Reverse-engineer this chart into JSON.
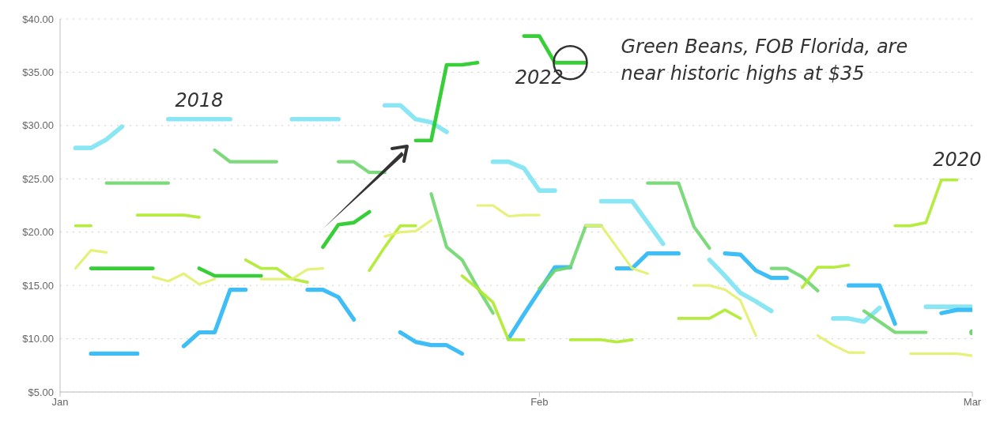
{
  "chart_data": {
    "type": "line",
    "x": [
      "--01-02",
      "--01-03",
      "--01-04",
      "--01-05",
      "--01-06",
      "--01-07",
      "--01-08",
      "--01-09",
      "--01-10",
      "--01-11",
      "--01-12",
      "--01-13",
      "--01-14",
      "--01-15",
      "--01-16",
      "--01-17",
      "--01-18",
      "--01-19",
      "--01-20",
      "--01-21",
      "--01-22",
      "--01-23",
      "--01-24",
      "--01-25",
      "--01-26",
      "--01-27",
      "--01-28",
      "--01-29",
      "--01-30",
      "--01-31",
      "--02-01",
      "--02-02",
      "--02-03",
      "--02-04",
      "--02-05",
      "--02-06",
      "--02-07",
      "--02-08",
      "--02-09",
      "--02-10",
      "--02-11",
      "--02-12",
      "--02-13",
      "--02-14",
      "--02-15",
      "--02-16",
      "--02-17",
      "--02-18",
      "--02-19",
      "--02-20",
      "--02-21",
      "--02-22",
      "--02-23",
      "--02-24",
      "--02-25",
      "--02-26",
      "--02-27",
      "--02-28",
      "--03-01"
    ],
    "series": [
      {
        "name": "2018",
        "color": "#7ee3f2",
        "values": [
          27.9,
          27.9,
          28.7,
          29.9,
          null,
          null,
          30.6,
          30.6,
          30.6,
          30.6,
          30.6,
          null,
          null,
          null,
          30.6,
          30.6,
          30.6,
          30.6,
          null,
          null,
          31.9,
          31.9,
          30.6,
          30.3,
          29.4,
          null,
          null,
          26.6,
          26.6,
          26.0,
          23.9,
          23.9,
          null,
          null,
          22.9,
          22.9,
          22.9,
          20.9,
          18.9,
          null,
          null,
          17.4,
          15.9,
          14.3,
          13.5,
          12.6,
          null,
          null,
          null,
          11.9,
          11.9,
          11.6,
          12.9,
          null,
          null,
          13.0,
          13.0,
          13.0,
          13.0
        ]
      },
      {
        "color": "#29b6f6",
        "values": [
          null,
          8.6,
          8.6,
          8.6,
          8.6,
          null,
          null,
          9.3,
          10.6,
          10.6,
          14.6,
          14.6,
          null,
          null,
          null,
          14.6,
          14.6,
          13.9,
          11.8,
          null,
          null,
          10.6,
          9.7,
          9.4,
          9.4,
          8.6,
          null,
          null,
          10.0,
          12.3,
          14.5,
          16.7,
          16.7,
          null,
          null,
          16.6,
          16.6,
          18.0,
          18.0,
          18.0,
          null,
          null,
          18.0,
          17.9,
          16.4,
          15.7,
          15.7,
          null,
          null,
          null,
          15.0,
          15.0,
          15.0,
          11.4,
          null,
          null,
          12.4,
          12.7,
          12.7
        ]
      },
      {
        "name": "2022",
        "color": "#22c922",
        "values": [
          null,
          16.6,
          16.6,
          16.6,
          16.6,
          16.6,
          null,
          null,
          16.6,
          15.9,
          15.9,
          15.9,
          15.9,
          null,
          null,
          null,
          18.6,
          20.7,
          20.9,
          21.9,
          null,
          null,
          28.6,
          28.6,
          35.7,
          35.7,
          35.9,
          null,
          null,
          38.4,
          38.4,
          35.9,
          35.9,
          35.9,
          null,
          null,
          null,
          null,
          null,
          null,
          null,
          null,
          null,
          null,
          null,
          null,
          null,
          null,
          null,
          null,
          null,
          null,
          null,
          null,
          null,
          null,
          null,
          null,
          null
        ]
      },
      {
        "color": "#6ed66e",
        "values": [
          null,
          null,
          24.6,
          24.6,
          24.6,
          24.6,
          24.6,
          null,
          null,
          27.7,
          26.6,
          26.6,
          26.6,
          26.6,
          null,
          null,
          null,
          26.6,
          26.6,
          25.6,
          25.6,
          null,
          null,
          23.6,
          18.6,
          17.4,
          14.8,
          12.4,
          null,
          null,
          14.7,
          16.4,
          16.7,
          20.6,
          20.6,
          null,
          null,
          24.6,
          24.6,
          24.6,
          20.5,
          18.5,
          null,
          null,
          null,
          16.6,
          16.6,
          15.8,
          14.5,
          null,
          null,
          12.6,
          11.6,
          10.6,
          10.6,
          10.6,
          null,
          null,
          10.6
        ]
      },
      {
        "name": "2020",
        "color": "#aeea2c",
        "values": [
          20.6,
          20.6,
          null,
          null,
          21.6,
          21.6,
          21.6,
          21.6,
          21.4,
          null,
          null,
          17.4,
          16.6,
          16.6,
          15.6,
          15.3,
          null,
          null,
          null,
          16.4,
          18.6,
          20.6,
          20.6,
          null,
          null,
          15.9,
          14.7,
          13.4,
          9.9,
          9.9,
          null,
          null,
          9.9,
          9.9,
          9.9,
          9.7,
          9.9,
          null,
          null,
          11.9,
          11.9,
          11.9,
          12.7,
          11.9,
          null,
          null,
          null,
          14.8,
          16.7,
          16.7,
          16.9,
          null,
          null,
          20.6,
          20.6,
          20.9,
          24.9,
          24.9,
          null
        ]
      },
      {
        "color": "#e2f06a",
        "values": [
          16.6,
          18.3,
          18.1,
          null,
          null,
          15.8,
          15.4,
          16.1,
          15.1,
          15.6,
          null,
          null,
          15.6,
          15.6,
          15.6,
          16.5,
          16.6,
          null,
          null,
          null,
          19.6,
          20.0,
          20.1,
          21.1,
          null,
          null,
          22.5,
          22.5,
          21.5,
          21.6,
          21.6,
          null,
          null,
          20.6,
          20.6,
          18.6,
          16.6,
          16.1,
          null,
          null,
          15.0,
          15.0,
          14.6,
          13.6,
          10.3,
          null,
          null,
          null,
          10.3,
          9.4,
          8.7,
          8.7,
          null,
          null,
          8.6,
          8.6,
          8.6,
          8.6,
          8.4
        ]
      }
    ],
    "xlim": [
      "--01-01",
      "--03-01"
    ],
    "xticks": [
      {
        "value": "--01-01",
        "label": "Jan"
      },
      {
        "value": "--02-01",
        "label": "Feb"
      },
      {
        "value": "--03-01",
        "label": "Mar"
      }
    ],
    "ylim": [
      5,
      40
    ],
    "yticks": [
      {
        "value": 5,
        "label": "$5.00"
      },
      {
        "value": 10,
        "label": "$10.00"
      },
      {
        "value": 15,
        "label": "$15.00"
      },
      {
        "value": 20,
        "label": "$20.00"
      },
      {
        "value": 25,
        "label": "$25.00"
      },
      {
        "value": 30,
        "label": "$30.00"
      },
      {
        "value": 35,
        "label": "$35.00"
      },
      {
        "value": 40,
        "label": "$40.00"
      }
    ],
    "grid": "y",
    "marker": "none",
    "line_style": "solid",
    "annotations": [
      {
        "text": "Green Beans, FOB Florida, are near historic highs at $35",
        "x": "--02-03",
        "y": 35.9
      }
    ]
  }
}
